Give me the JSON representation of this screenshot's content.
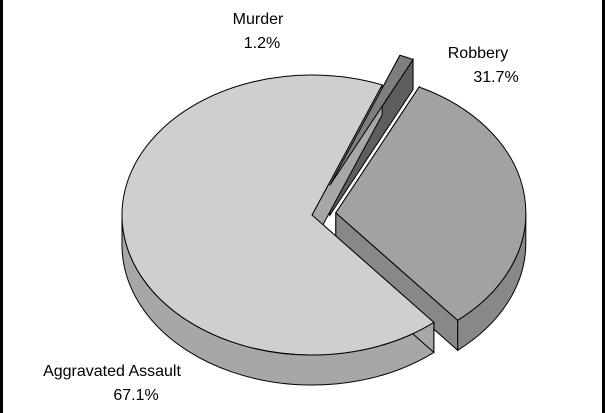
{
  "chart_data": {
    "type": "pie",
    "style": "3d-exploded",
    "title": "",
    "slices": [
      {
        "label": "Robbery",
        "value_label": "31.7%",
        "value": 31.7,
        "color": "#a2a2a2",
        "side_color": "#888888",
        "exploded": true
      },
      {
        "label": "Aggravated Assault",
        "value_label": "67.1%",
        "value": 67.1,
        "color": "#cfcfcf",
        "side_color": "#a7a7a7",
        "exploded": false
      },
      {
        "label": "Murder",
        "value_label": "1.2%",
        "value": 1.2,
        "color": "#7e7e7e",
        "side_color": "#5e5e5e",
        "exploded": true
      }
    ]
  }
}
